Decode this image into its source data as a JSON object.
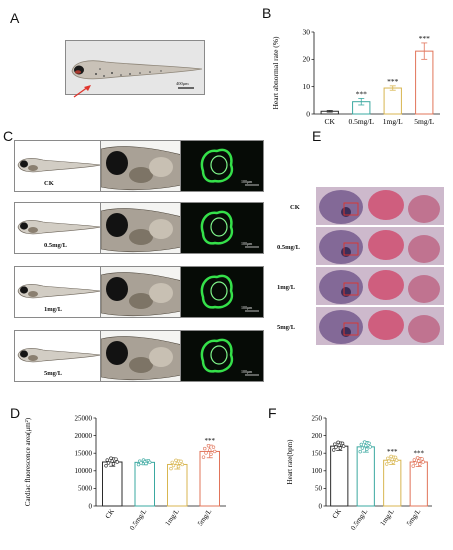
{
  "panels": {
    "a": "A",
    "b": "B",
    "c": "C",
    "d": "D",
    "e": "E",
    "f": "F"
  },
  "panel_a": {
    "scale_bar": "400μm"
  },
  "panel_c": {
    "rows": [
      {
        "label": "CK",
        "scale_bar": "100μm"
      },
      {
        "label": "0.5mg/L",
        "scale_bar": "100μm"
      },
      {
        "label": "1mg/L",
        "scale_bar": "100μm"
      },
      {
        "label": "5mg/L",
        "scale_bar": "100μm"
      }
    ]
  },
  "panel_e": {
    "rows": [
      "CK",
      "0.5mg/L",
      "1mg/L",
      "5mg/L"
    ]
  },
  "colors": {
    "ck": "#2b2b2b",
    "g05": "#3aa8a0",
    "g1": "#d8b650",
    "g5": "#e1745a",
    "heart_green": "#35e04a",
    "arrow": "#e0352d"
  },
  "chart_data": [
    {
      "panel": "B",
      "type": "bar",
      "categories": [
        "CK",
        "0.5mg/L",
        "1mg/L",
        "5mg/L"
      ],
      "values": [
        1,
        4.5,
        9.5,
        23
      ],
      "errors": [
        0.3,
        1.2,
        0.8,
        3
      ],
      "significance": [
        "",
        "***",
        "***",
        "***"
      ],
      "ylabel": "Heart abnormal rate (%)",
      "ylim": [
        0,
        30
      ],
      "yticks": [
        0,
        10,
        20,
        30
      ]
    },
    {
      "panel": "D",
      "type": "bar",
      "categories": [
        "CK",
        "0.5mg/L",
        "1mg/L",
        "5mg/L"
      ],
      "values": [
        12500,
        12400,
        11800,
        15500
      ],
      "errors": [
        1200,
        700,
        1300,
        1800
      ],
      "significance": [
        "",
        "",
        "",
        "***"
      ],
      "ylabel": "Cardiac fluorescence area(μm²)",
      "ylim": [
        0,
        25000
      ],
      "yticks": [
        0,
        5000,
        10000,
        15000,
        20000,
        25000
      ]
    },
    {
      "panel": "F",
      "type": "bar",
      "categories": [
        "CK",
        "0.5mg/L",
        "1mg/L",
        "5mg/L"
      ],
      "values": [
        170,
        168,
        130,
        125
      ],
      "errors": [
        12,
        15,
        12,
        13
      ],
      "significance": [
        "",
        "",
        "***",
        "***"
      ],
      "ylabel": "Heart rate(bpm)",
      "ylim": [
        0,
        250
      ],
      "yticks": [
        0,
        50,
        100,
        150,
        200,
        250
      ]
    }
  ]
}
